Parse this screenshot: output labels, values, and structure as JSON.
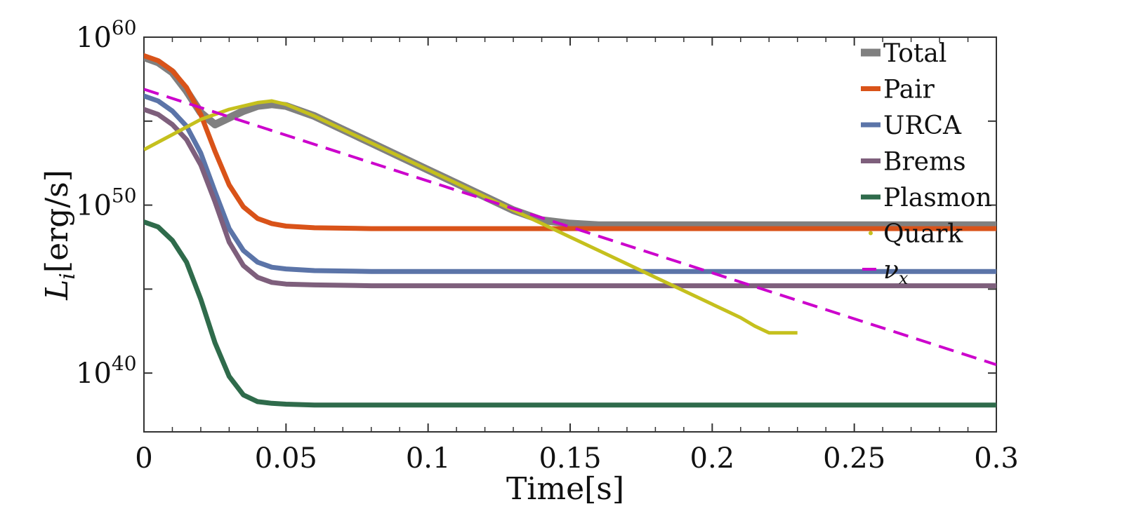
{
  "chart_data": {
    "type": "line",
    "title": "",
    "xlabel": "Time[s]",
    "ylabel": {
      "base": "L",
      "sub": "i",
      "unit": "[erg/s]"
    },
    "xlim": [
      0,
      0.3
    ],
    "ylim_log10": [
      36.5,
      60
    ],
    "y_scale": "log",
    "x_ticks": [
      0,
      0.05,
      0.1,
      0.15,
      0.2,
      0.25,
      0.3
    ],
    "x_tick_labels": [
      "0",
      "0.05",
      "0.1",
      "0.15",
      "0.2",
      "0.25",
      "0.3"
    ],
    "y_ticks_log10": [
      40,
      50,
      60
    ],
    "y_tick_labels": [
      {
        "base": "10",
        "exp": "40"
      },
      {
        "base": "10",
        "exp": "50"
      },
      {
        "base": "10",
        "exp": "60"
      }
    ],
    "legend_position": "top-right",
    "series": [
      {
        "name": "Total",
        "label": "Total",
        "color": "#808080",
        "style": "thick",
        "x": [
          0,
          0.005,
          0.01,
          0.015,
          0.02,
          0.025,
          0.03,
          0.035,
          0.04,
          0.045,
          0.05,
          0.06,
          0.07,
          0.08,
          0.09,
          0.1,
          0.11,
          0.12,
          0.13,
          0.14,
          0.15,
          0.16,
          0.18,
          0.2,
          0.25,
          0.3
        ],
        "y_log10": [
          58.8,
          58.5,
          57.9,
          56.8,
          55.5,
          54.8,
          55.2,
          55.6,
          55.9,
          56.0,
          55.9,
          55.3,
          54.5,
          53.7,
          52.9,
          52.1,
          51.3,
          50.5,
          49.7,
          49.1,
          48.9,
          48.8,
          48.8,
          48.8,
          48.8,
          48.8
        ]
      },
      {
        "name": "Pair",
        "label": "Pair",
        "color": "#d95319",
        "style": "thick",
        "x": [
          0,
          0.005,
          0.01,
          0.015,
          0.02,
          0.025,
          0.03,
          0.035,
          0.04,
          0.045,
          0.05,
          0.06,
          0.08,
          0.1,
          0.15,
          0.2,
          0.25,
          0.3
        ],
        "y_log10": [
          58.9,
          58.6,
          58.0,
          57.0,
          55.4,
          53.2,
          51.2,
          49.9,
          49.2,
          48.9,
          48.75,
          48.65,
          48.6,
          48.6,
          48.6,
          48.6,
          48.6,
          48.6
        ]
      },
      {
        "name": "URCA",
        "label": "URCA",
        "color": "#5b74a8",
        "style": "thick",
        "x": [
          0,
          0.005,
          0.01,
          0.015,
          0.02,
          0.025,
          0.03,
          0.035,
          0.04,
          0.045,
          0.05,
          0.06,
          0.08,
          0.1,
          0.15,
          0.2,
          0.25,
          0.3
        ],
        "y_log10": [
          56.5,
          56.2,
          55.6,
          54.7,
          53.1,
          50.8,
          48.6,
          47.3,
          46.6,
          46.3,
          46.2,
          46.1,
          46.05,
          46.05,
          46.05,
          46.05,
          46.05,
          46.05
        ]
      },
      {
        "name": "Brems",
        "label": "Brems",
        "color": "#7e5f7c",
        "style": "thick",
        "x": [
          0,
          0.005,
          0.01,
          0.015,
          0.02,
          0.025,
          0.03,
          0.035,
          0.04,
          0.045,
          0.05,
          0.06,
          0.08,
          0.1,
          0.15,
          0.2,
          0.25,
          0.3
        ],
        "y_log10": [
          55.7,
          55.4,
          54.8,
          53.9,
          52.4,
          50.2,
          47.8,
          46.4,
          45.7,
          45.4,
          45.3,
          45.25,
          45.2,
          45.2,
          45.2,
          45.2,
          45.2,
          45.2
        ]
      },
      {
        "name": "Plasmon",
        "label": "Plasmon",
        "color": "#2f6b4b",
        "style": "thick",
        "x": [
          0,
          0.005,
          0.01,
          0.015,
          0.02,
          0.025,
          0.03,
          0.035,
          0.04,
          0.045,
          0.05,
          0.06,
          0.08,
          0.1,
          0.15,
          0.2,
          0.25,
          0.3
        ],
        "y_log10": [
          49.0,
          48.7,
          47.9,
          46.6,
          44.4,
          41.8,
          39.8,
          38.7,
          38.3,
          38.2,
          38.15,
          38.1,
          38.1,
          38.1,
          38.1,
          38.1,
          38.1,
          38.1
        ]
      },
      {
        "name": "Quark",
        "label": "Quark",
        "color": "#c5c01d",
        "style": "dots",
        "x": [
          0,
          0.01,
          0.02,
          0.03,
          0.04,
          0.045,
          0.05,
          0.06,
          0.07,
          0.08,
          0.09,
          0.1,
          0.11,
          0.12,
          0.13,
          0.14,
          0.15,
          0.16,
          0.17,
          0.18,
          0.19,
          0.2,
          0.205,
          0.21,
          0.215,
          0.22,
          0.23
        ],
        "y_log10": [
          53.3,
          54.2,
          55.1,
          55.7,
          56.1,
          56.2,
          56.0,
          55.3,
          54.5,
          53.7,
          52.9,
          52.1,
          51.3,
          50.5,
          49.7,
          48.9,
          48.1,
          47.3,
          46.5,
          45.7,
          44.9,
          44.1,
          43.7,
          43.3,
          42.8,
          42.4,
          42.4
        ]
      },
      {
        "name": "nu_x",
        "label": "ν",
        "label_sub": "x",
        "color": "#cc00cc",
        "style": "dashed",
        "x": [
          0,
          0.3
        ],
        "y_log10": [
          56.9,
          40.5
        ]
      }
    ]
  }
}
